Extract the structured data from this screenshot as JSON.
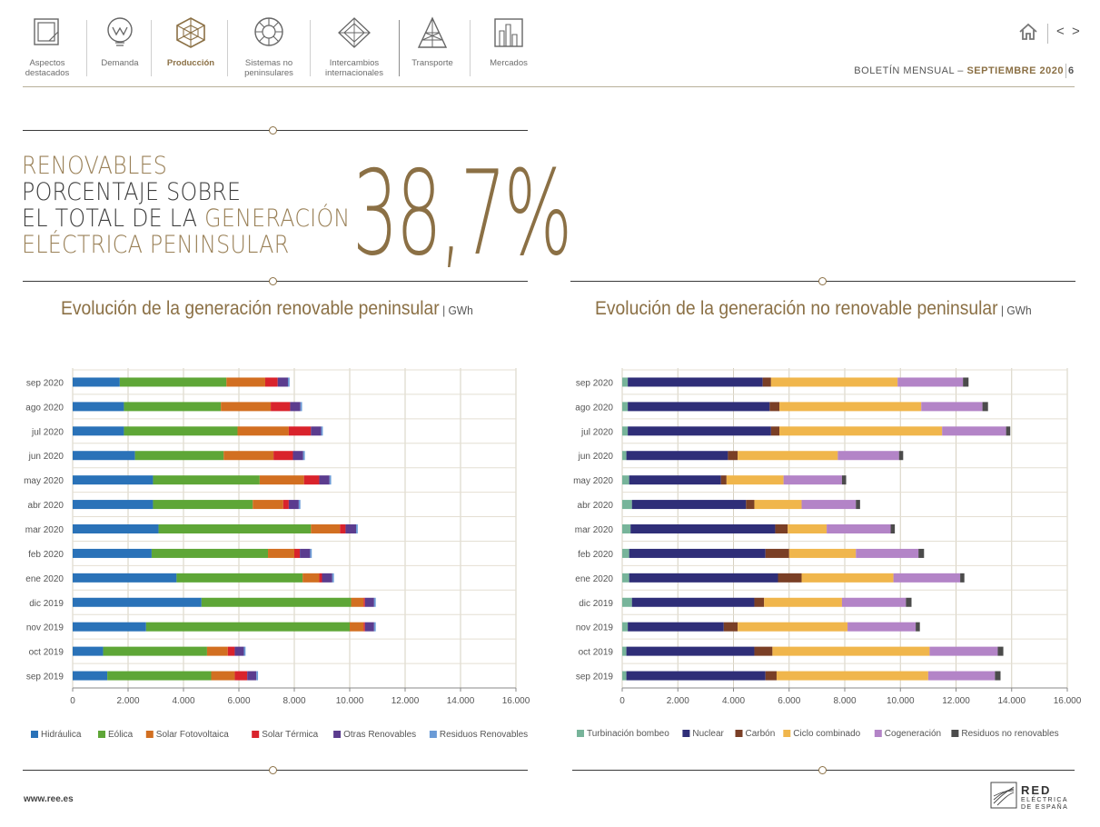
{
  "nav": {
    "items": [
      {
        "label": "Aspectos destacados",
        "line1": "Aspectos",
        "line2": "destacados"
      },
      {
        "label": "Demanda",
        "line1": "Demanda",
        "line2": ""
      },
      {
        "label": "Producción",
        "line1": "Producción",
        "line2": ""
      },
      {
        "label": "Sistemas no peninsulares",
        "line1": "Sistemas no",
        "line2": "peninsulares"
      },
      {
        "label": "Intercambios internacionales",
        "line1": "Intercambios",
        "line2": "internacionales"
      },
      {
        "label": "Transporte",
        "line1": "Transporte",
        "line2": ""
      },
      {
        "label": "Mercados",
        "line1": "Mercados",
        "line2": ""
      }
    ],
    "active": "Producción",
    "prev_label": "<",
    "next_label": ">"
  },
  "header": {
    "bulletin": "BOLETÍN MENSUAL",
    "dash": "–",
    "month": "SEPTIEMBRE 2020",
    "page": "6"
  },
  "kpi": {
    "line1": "RENOVABLES",
    "line2": "PORCENTAJE SOBRE",
    "line3a": "EL TOTAL DE LA ",
    "line3b": "GENERACIÓN",
    "line4": "ELÉCTRICA PENINSULAR",
    "value": "38,7%"
  },
  "colors": {
    "gold": "#8b7045",
    "hidraulica": "#2a72b8",
    "eolica": "#5ea637",
    "solar_fv": "#d26f21",
    "solar_termica": "#d9232c",
    "otras_renovables": "#5b3c8e",
    "residuos_renovables": "#6b9bd6",
    "turbinacion": "#77b49a",
    "nuclear": "#2f2e78",
    "carbon": "#7a3f26",
    "ciclo": "#f0b64c",
    "cogeneracion": "#b384c7",
    "residuos_no_renovables": "#4b4b4b"
  },
  "chart_data": [
    {
      "type": "bar",
      "orientation": "horizontal",
      "stacked": true,
      "title": "Evolución de la generación renovable peninsular",
      "unit": "GWh",
      "categories": [
        "sep 2020",
        "ago 2020",
        "jul 2020",
        "jun 2020",
        "may 2020",
        "abr 2020",
        "mar 2020",
        "feb 2020",
        "ene 2020",
        "dic 2019",
        "nov 2019",
        "oct 2019",
        "sep 2019"
      ],
      "xlim": [
        0,
        16000
      ],
      "xticks": [
        0,
        2000,
        4000,
        6000,
        8000,
        10000,
        12000,
        14000,
        16000
      ],
      "xtick_labels": [
        "0",
        "2.000",
        "4.000",
        "6.000",
        "8.000",
        "10.000",
        "12.000",
        "14.000",
        "16.000"
      ],
      "legend_position": "bottom",
      "series": [
        {
          "name": "Hidráulica",
          "color": "#2a72b8",
          "values": [
            1700,
            1850,
            1850,
            2250,
            2900,
            2900,
            3100,
            2850,
            3750,
            4650,
            2650,
            1100,
            1250
          ]
        },
        {
          "name": "Eólica",
          "color": "#5ea637",
          "values": [
            3850,
            3500,
            4100,
            3200,
            3850,
            3600,
            5500,
            4200,
            4550,
            5400,
            7350,
            3750,
            3750
          ]
        },
        {
          "name": "Solar Fotovoltaica",
          "color": "#d26f21",
          "values": [
            1400,
            1800,
            1850,
            1800,
            1600,
            1100,
            1050,
            950,
            600,
            450,
            500,
            750,
            850
          ]
        },
        {
          "name": "Solar Térmica",
          "color": "#d9232c",
          "values": [
            450,
            700,
            800,
            700,
            550,
            200,
            200,
            200,
            100,
            50,
            50,
            250,
            450
          ]
        },
        {
          "name": "Otras Renovables",
          "color": "#5b3c8e",
          "values": [
            370,
            370,
            370,
            370,
            370,
            360,
            380,
            370,
            370,
            330,
            330,
            330,
            330
          ]
        },
        {
          "name": "Residuos Renovables",
          "color": "#6b9bd6",
          "values": [
            60,
            60,
            60,
            60,
            60,
            60,
            60,
            60,
            60,
            60,
            60,
            60,
            60
          ]
        }
      ]
    },
    {
      "type": "bar",
      "orientation": "horizontal",
      "stacked": true,
      "title": "Evolución de la generación no renovable peninsular",
      "unit": "GWh",
      "categories": [
        "sep 2020",
        "ago 2020",
        "jul 2020",
        "jun 2020",
        "may 2020",
        "abr 2020",
        "mar 2020",
        "feb 2020",
        "ene 2020",
        "dic 2019",
        "nov 2019",
        "oct 2019",
        "sep 2019"
      ],
      "xlim": [
        0,
        16000
      ],
      "xticks": [
        0,
        2000,
        4000,
        6000,
        8000,
        10000,
        12000,
        14000,
        16000
      ],
      "xtick_labels": [
        "0",
        "2.000",
        "4.000",
        "6.000",
        "8.000",
        "10.000",
        "12.000",
        "14.000",
        "16.000"
      ],
      "legend_position": "bottom",
      "series": [
        {
          "name": "Turbinación bombeo",
          "color": "#77b49a",
          "values": [
            200,
            200,
            200,
            150,
            250,
            350,
            300,
            250,
            250,
            350,
            200,
            150,
            150
          ]
        },
        {
          "name": "Nuclear",
          "color": "#2f2e78",
          "values": [
            4850,
            5100,
            5150,
            3650,
            3300,
            4100,
            5200,
            4900,
            5350,
            4400,
            3450,
            4600,
            5000
          ]
        },
        {
          "name": "Carbón",
          "color": "#7a3f26",
          "values": [
            300,
            350,
            300,
            350,
            200,
            300,
            450,
            850,
            850,
            350,
            500,
            650,
            400
          ]
        },
        {
          "name": "Ciclo combinado",
          "color": "#f0b64c",
          "values": [
            4550,
            5100,
            5850,
            3600,
            2050,
            1700,
            1400,
            2400,
            3300,
            2800,
            3950,
            5650,
            5450
          ]
        },
        {
          "name": "Cogeneración",
          "color": "#b384c7",
          "values": [
            2350,
            2200,
            2300,
            2200,
            2100,
            1950,
            2300,
            2250,
            2400,
            2300,
            2450,
            2450,
            2400
          ]
        },
        {
          "name": "Residuos no renovables",
          "color": "#4b4b4b",
          "values": [
            200,
            200,
            150,
            150,
            150,
            150,
            150,
            200,
            150,
            200,
            150,
            200,
            200
          ]
        }
      ]
    }
  ],
  "footer": {
    "url": "www.ree.es",
    "logo_name": "RED",
    "logo_line2": "ELÉCTRICA",
    "logo_line3": "DE ESPAÑA"
  }
}
